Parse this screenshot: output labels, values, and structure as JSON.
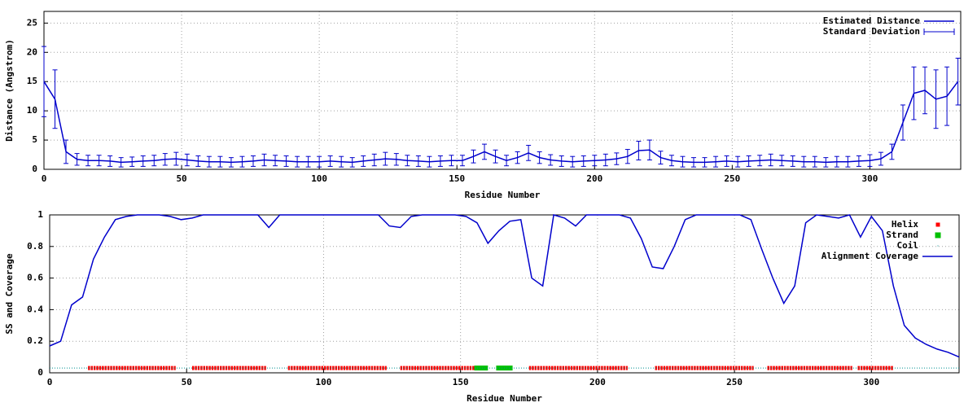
{
  "chart_data": [
    {
      "type": "line",
      "x_label": "Residue Number",
      "y_label": "Distance (Angstrom)",
      "xlim": [
        0,
        333
      ],
      "ylim": [
        0,
        27
      ],
      "xticks": [
        0,
        50,
        100,
        150,
        200,
        250,
        300
      ],
      "yticks": [
        0,
        5,
        10,
        15,
        20,
        25
      ],
      "grid": true,
      "legend": "upper right",
      "x": [
        0,
        4,
        8,
        12,
        16,
        20,
        24,
        28,
        32,
        36,
        40,
        44,
        48,
        52,
        56,
        60,
        64,
        68,
        72,
        76,
        80,
        84,
        88,
        92,
        96,
        100,
        104,
        108,
        112,
        116,
        120,
        124,
        128,
        132,
        136,
        140,
        144,
        148,
        152,
        156,
        160,
        164,
        168,
        172,
        176,
        180,
        184,
        188,
        192,
        196,
        200,
        204,
        208,
        212,
        216,
        220,
        224,
        228,
        232,
        236,
        240,
        244,
        248,
        252,
        256,
        260,
        264,
        268,
        272,
        276,
        280,
        284,
        288,
        292,
        296,
        300,
        304,
        308,
        312,
        316,
        320,
        324,
        328,
        332
      ],
      "series": [
        {
          "name": "Estimated Distance",
          "error_name": "Standard Deviation",
          "color": "#0000cc",
          "values": [
            15,
            12,
            3,
            1.7,
            1.5,
            1.5,
            1.4,
            1.2,
            1.3,
            1.4,
            1.5,
            1.7,
            1.8,
            1.6,
            1.4,
            1.3,
            1.3,
            1.2,
            1.3,
            1.4,
            1.6,
            1.5,
            1.4,
            1.3,
            1.3,
            1.3,
            1.4,
            1.3,
            1.2,
            1.4,
            1.6,
            1.8,
            1.7,
            1.5,
            1.4,
            1.3,
            1.4,
            1.5,
            1.5,
            2.2,
            3,
            2.2,
            1.5,
            2,
            2.8,
            2,
            1.6,
            1.4,
            1.3,
            1.4,
            1.5,
            1.6,
            1.8,
            2.2,
            3.2,
            3.3,
            2,
            1.5,
            1.3,
            1.2,
            1.2,
            1.3,
            1.4,
            1.3,
            1.4,
            1.5,
            1.6,
            1.5,
            1.4,
            1.3,
            1.3,
            1.2,
            1.3,
            1.3,
            1.4,
            1.5,
            1.8,
            3,
            8,
            13,
            13.5,
            12,
            12.5,
            15
          ],
          "errors": [
            6,
            5,
            2,
            1,
            0.9,
            0.9,
            0.9,
            0.8,
            0.8,
            0.9,
            0.9,
            1,
            1.1,
            1,
            0.9,
            0.9,
            0.9,
            0.8,
            0.9,
            0.9,
            1,
            0.9,
            0.9,
            0.9,
            0.9,
            0.9,
            0.9,
            0.9,
            0.8,
            0.9,
            1,
            1.1,
            1,
            0.9,
            0.9,
            0.9,
            0.9,
            0.9,
            0.9,
            1.1,
            1.3,
            1.1,
            0.9,
            1,
            1.3,
            1,
            0.9,
            0.9,
            0.9,
            0.9,
            0.9,
            1,
            1,
            1.2,
            1.6,
            1.7,
            1.1,
            0.9,
            0.9,
            0.8,
            0.8,
            0.9,
            0.9,
            0.9,
            0.9,
            0.9,
            1,
            0.9,
            0.9,
            0.9,
            0.9,
            0.8,
            0.9,
            0.9,
            0.9,
            1,
            1.1,
            1.3,
            3,
            4.5,
            4,
            5,
            5,
            4
          ]
        }
      ]
    },
    {
      "type": "line",
      "x_label": "Residue Number",
      "y_label": "SS and Coverage",
      "xlim": [
        0,
        332
      ],
      "ylim": [
        0,
        1
      ],
      "xticks": [
        0,
        50,
        100,
        150,
        200,
        250,
        300
      ],
      "yticks": [
        0,
        0.2,
        0.4,
        0.6,
        0.8,
        1
      ],
      "grid": true,
      "legend": "upper right",
      "x": [
        0,
        4,
        8,
        12,
        16,
        20,
        24,
        28,
        32,
        36,
        40,
        44,
        48,
        52,
        56,
        60,
        64,
        68,
        72,
        76,
        80,
        84,
        88,
        92,
        96,
        100,
        104,
        108,
        112,
        116,
        120,
        124,
        128,
        132,
        136,
        140,
        144,
        148,
        152,
        156,
        160,
        164,
        168,
        172,
        176,
        180,
        184,
        188,
        192,
        196,
        200,
        204,
        208,
        212,
        216,
        220,
        224,
        228,
        232,
        236,
        240,
        244,
        248,
        252,
        256,
        260,
        264,
        268,
        272,
        276,
        280,
        284,
        288,
        292,
        296,
        300,
        304,
        308,
        312,
        316,
        320,
        324,
        328,
        332
      ],
      "series": [
        {
          "name": "Helix",
          "color": "#ff0000",
          "style": "stars",
          "y": 0.03,
          "ranges": [
            [
              14,
              46
            ],
            [
              52,
              79
            ],
            [
              87,
              123
            ],
            [
              128,
              155
            ],
            [
              175,
              211
            ],
            [
              221,
              257
            ],
            [
              262,
              293
            ],
            [
              295,
              308
            ]
          ]
        },
        {
          "name": "Strand",
          "color": "#00c000",
          "style": "squares",
          "y": 0.03,
          "ranges": [
            [
              155,
              160
            ],
            [
              163,
              169
            ]
          ]
        },
        {
          "name": "Coil",
          "color": "#009090",
          "style": "dots",
          "y": 0.03,
          "ranges": [
            [
              0,
              332
            ]
          ]
        },
        {
          "name": "Alignment Coverage",
          "color": "#0000cc",
          "style": "line",
          "values": [
            0.17,
            0.2,
            0.43,
            0.48,
            0.72,
            0.86,
            0.97,
            0.99,
            1,
            1,
            1,
            0.99,
            0.97,
            0.98,
            1,
            1,
            1,
            1,
            1,
            1,
            0.92,
            1,
            1,
            1,
            1,
            1,
            1,
            1,
            1,
            1,
            1,
            0.93,
            0.92,
            0.99,
            1,
            1,
            1,
            1,
            0.99,
            0.95,
            0.82,
            0.9,
            0.96,
            0.97,
            0.6,
            0.55,
            1,
            0.98,
            0.93,
            1,
            1,
            1,
            1,
            0.98,
            0.85,
            0.67,
            0.66,
            0.8,
            0.97,
            1,
            1,
            1,
            1,
            1,
            0.97,
            0.78,
            0.6,
            0.44,
            0.55,
            0.95,
            1,
            0.99,
            0.98,
            1,
            0.86,
            0.99,
            0.9,
            0.55,
            0.3,
            0.22,
            0.18,
            0.15,
            0.13,
            0.1
          ]
        }
      ]
    }
  ]
}
